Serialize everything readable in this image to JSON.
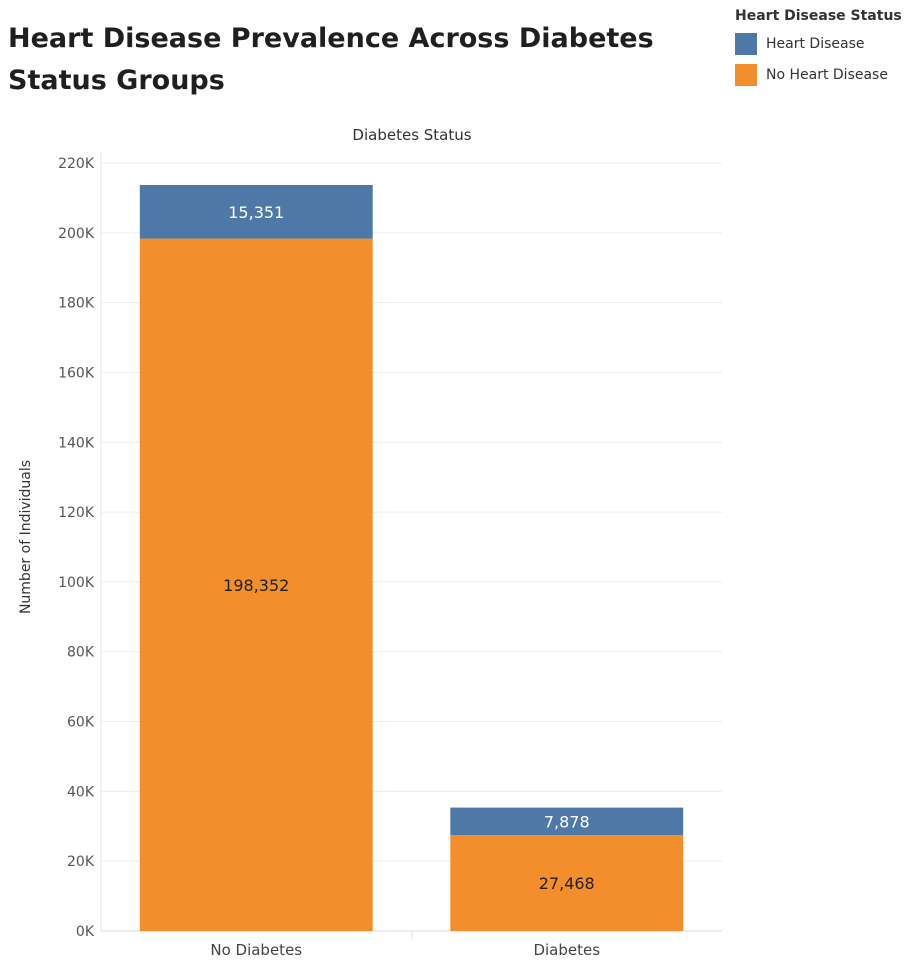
{
  "chart_data": {
    "type": "bar",
    "stacked": true,
    "title": "Heart Disease Prevalence Across Diabetes Status Groups",
    "column_header": "Diabetes Status",
    "ylabel": "Number of Individuals",
    "ylim": [
      0,
      220000
    ],
    "yticks": [
      0,
      20000,
      40000,
      60000,
      80000,
      100000,
      120000,
      140000,
      160000,
      180000,
      200000,
      220000
    ],
    "ytick_labels": [
      "0K",
      "20K",
      "40K",
      "60K",
      "80K",
      "100K",
      "120K",
      "140K",
      "160K",
      "180K",
      "200K",
      "220K"
    ],
    "grid": true,
    "categories": [
      "No Diabetes",
      "Diabetes"
    ],
    "legend_title": "Heart Disease Status",
    "legend_position": "top-right",
    "series": [
      {
        "name": "No Heart Disease",
        "values": [
          198352,
          27468
        ],
        "labels": [
          "198,352",
          "27,468"
        ],
        "color": "#f28e2b",
        "label_color": "#222222"
      },
      {
        "name": "Heart Disease",
        "values": [
          15351,
          7878
        ],
        "labels": [
          "15,351",
          "7,878"
        ],
        "color": "#4e79a7",
        "label_color": "#ffffff"
      }
    ]
  }
}
